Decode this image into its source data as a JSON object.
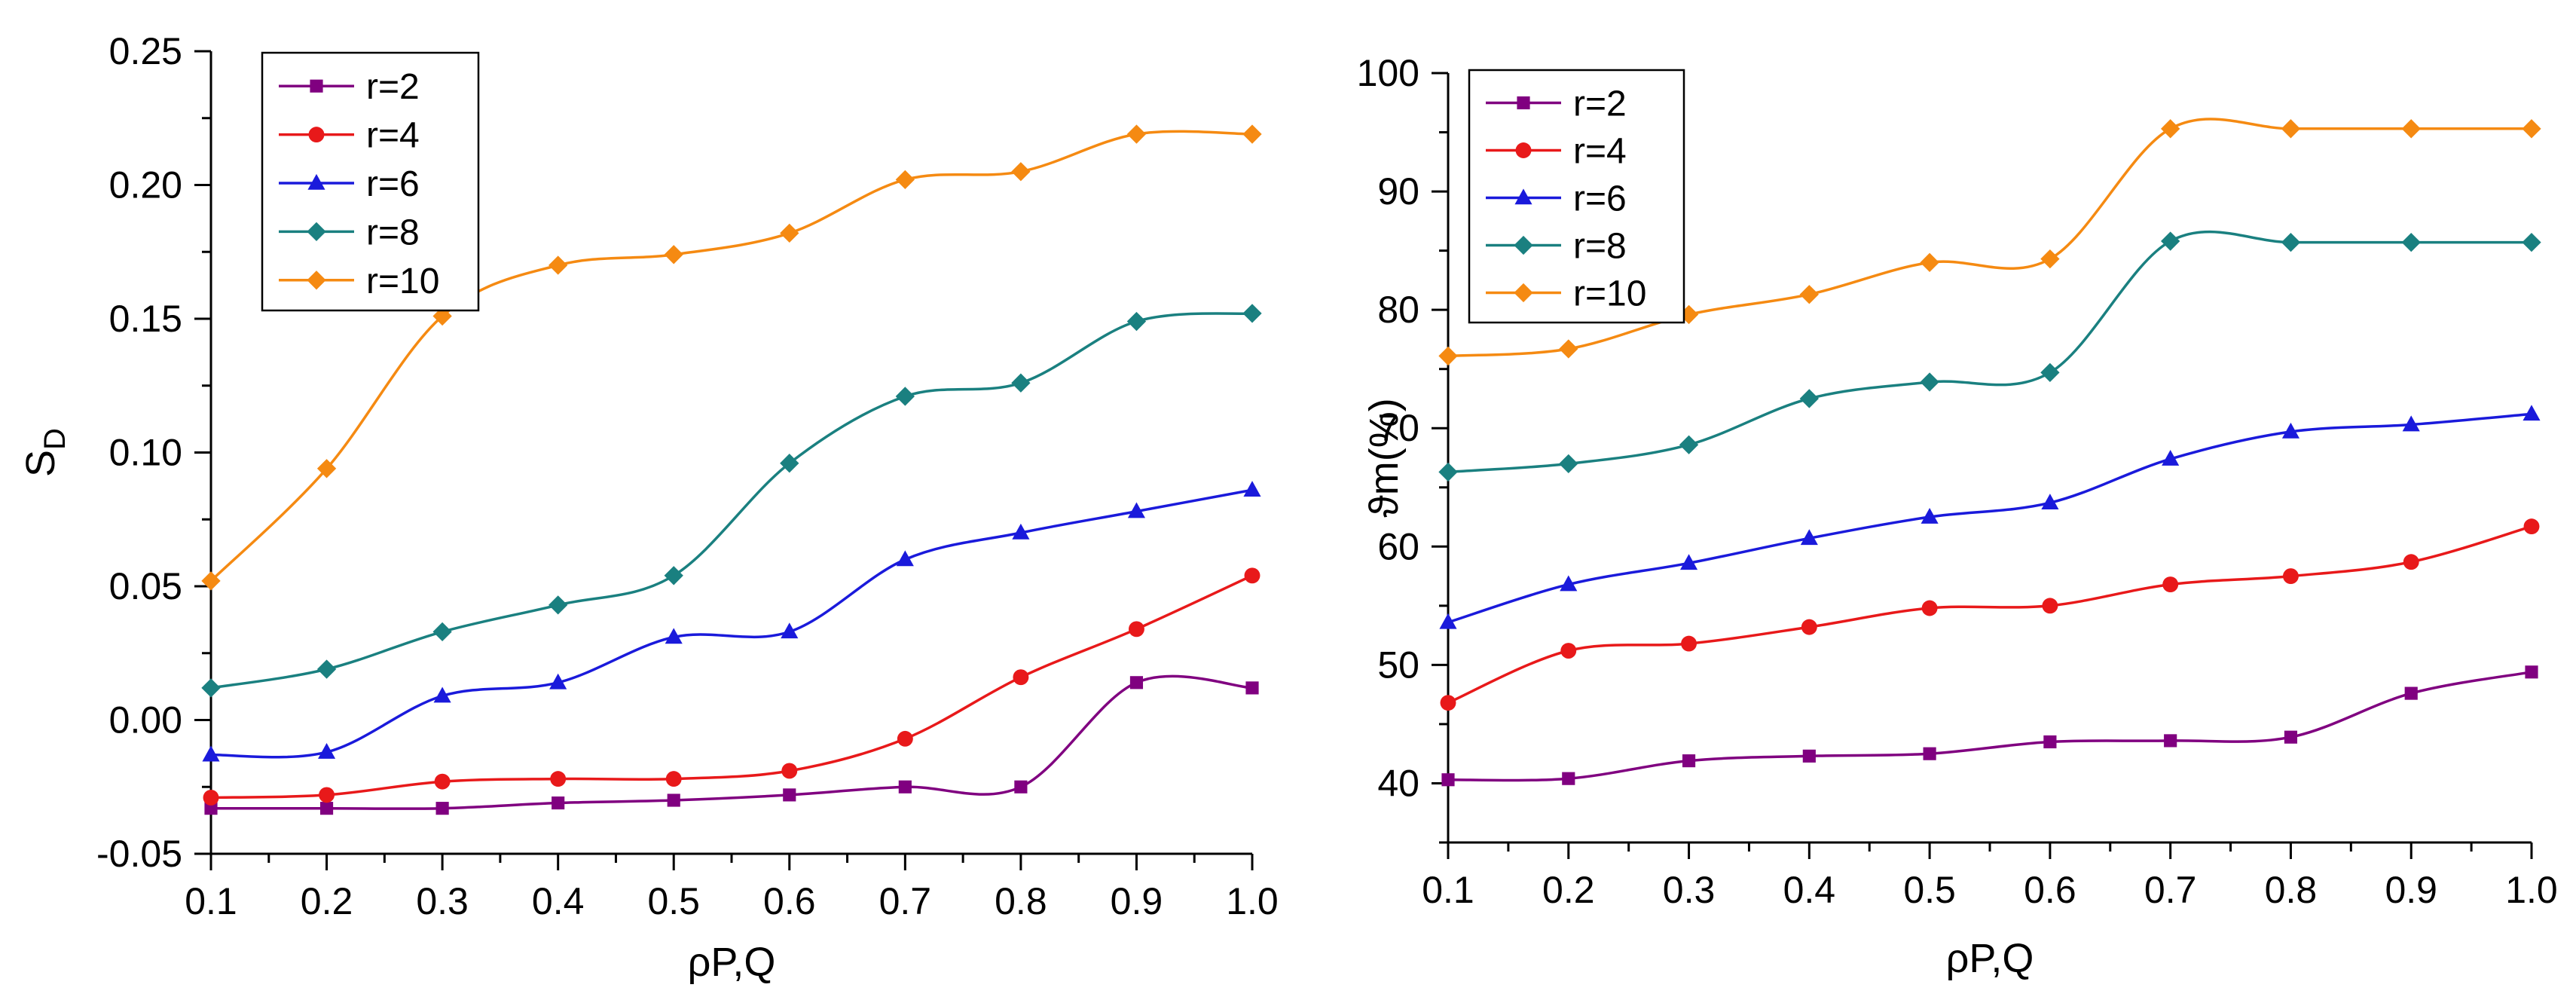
{
  "chart_data": [
    {
      "type": "line",
      "title": "",
      "xlabel": "ρP,Q",
      "ylabel": "SD",
      "ylabel_main": "S",
      "ylabel_sub": "D",
      "x": [
        0.1,
        0.2,
        0.3,
        0.4,
        0.5,
        0.6,
        0.7,
        0.8,
        0.9,
        1.0
      ],
      "xlim": [
        0.1,
        1.0
      ],
      "ylim": [
        -0.05,
        0.25
      ],
      "x_ticks": [
        0.1,
        0.2,
        0.3,
        0.4,
        0.5,
        0.6,
        0.7,
        0.8,
        0.9,
        1.0
      ],
      "x_tick_labels": [
        "0.1",
        "0.2",
        "0.3",
        "0.4",
        "0.5",
        "0.6",
        "0.7",
        "0.8",
        "0.9",
        "1.0"
      ],
      "y_ticks": [
        -0.05,
        0.0,
        0.05,
        0.1,
        0.15,
        0.2,
        0.25
      ],
      "y_tick_labels": [
        "-0.05",
        "0.00",
        "0.05",
        "0.10",
        "0.15",
        "0.20",
        "0.25"
      ],
      "grid": false,
      "legend_position": "top-left",
      "series": [
        {
          "name": "r=2",
          "color": "#800080",
          "marker": "square",
          "values": [
            -0.033,
            -0.033,
            -0.033,
            -0.031,
            -0.03,
            -0.028,
            -0.025,
            -0.025,
            0.014,
            0.012
          ]
        },
        {
          "name": "r=4",
          "color": "#e8191a",
          "marker": "circle",
          "values": [
            -0.029,
            -0.028,
            -0.023,
            -0.022,
            -0.022,
            -0.019,
            -0.007,
            0.016,
            0.034,
            0.054
          ]
        },
        {
          "name": "r=6",
          "color": "#1a1adb",
          "marker": "triangle",
          "values": [
            -0.013,
            -0.012,
            0.009,
            0.014,
            0.031,
            0.033,
            0.06,
            0.07,
            0.078,
            0.086
          ]
        },
        {
          "name": "r=8",
          "color": "#1a8080",
          "marker": "diamond",
          "values": [
            0.012,
            0.019,
            0.033,
            0.043,
            0.054,
            0.096,
            0.121,
            0.126,
            0.149,
            0.152
          ]
        },
        {
          "name": "r=10",
          "color": "#f58a12",
          "marker": "diamond",
          "values": [
            0.052,
            0.094,
            0.151,
            0.17,
            0.174,
            0.182,
            0.202,
            0.205,
            0.219,
            0.219
          ]
        }
      ]
    },
    {
      "type": "line",
      "title": "",
      "xlabel": "ρP,Q",
      "ylabel": "ϑm(%)",
      "ylabel_main": "ϑm(%)",
      "ylabel_sub": "",
      "x": [
        0.1,
        0.2,
        0.3,
        0.4,
        0.5,
        0.6,
        0.7,
        0.8,
        0.9,
        1.0
      ],
      "xlim": [
        0.1,
        1.0
      ],
      "ylim": [
        35,
        100
      ],
      "x_ticks": [
        0.1,
        0.2,
        0.3,
        0.4,
        0.5,
        0.6,
        0.7,
        0.8,
        0.9,
        1.0
      ],
      "x_tick_labels": [
        "0.1",
        "0.2",
        "0.3",
        "0.4",
        "0.5",
        "0.6",
        "0.7",
        "0.8",
        "0.9",
        "1.0"
      ],
      "y_ticks": [
        40,
        50,
        60,
        70,
        80,
        90,
        100
      ],
      "y_tick_labels": [
        "40",
        "50",
        "60",
        "70",
        "80",
        "90",
        "100"
      ],
      "grid": false,
      "legend_position": "top-left",
      "series": [
        {
          "name": "r=2",
          "color": "#800080",
          "marker": "square",
          "values": [
            40.3,
            40.4,
            41.9,
            42.3,
            42.5,
            43.5,
            43.6,
            43.9,
            47.6,
            49.4
          ]
        },
        {
          "name": "r=4",
          "color": "#e8191a",
          "marker": "circle",
          "values": [
            46.8,
            51.2,
            51.8,
            53.2,
            54.8,
            55.0,
            56.8,
            57.5,
            58.7,
            61.7
          ]
        },
        {
          "name": "r=6",
          "color": "#1a1adb",
          "marker": "triangle",
          "values": [
            53.6,
            56.8,
            58.6,
            60.7,
            62.5,
            63.7,
            67.4,
            69.7,
            70.3,
            71.2
          ]
        },
        {
          "name": "r=8",
          "color": "#1a8080",
          "marker": "diamond",
          "values": [
            66.3,
            67.0,
            68.6,
            72.5,
            73.9,
            74.7,
            85.8,
            85.7,
            85.7,
            85.7
          ]
        },
        {
          "name": "r=10",
          "color": "#f58a12",
          "marker": "diamond",
          "values": [
            76.1,
            76.7,
            79.6,
            81.3,
            84.0,
            84.3,
            95.3,
            95.3,
            95.3,
            95.3
          ]
        }
      ]
    }
  ]
}
